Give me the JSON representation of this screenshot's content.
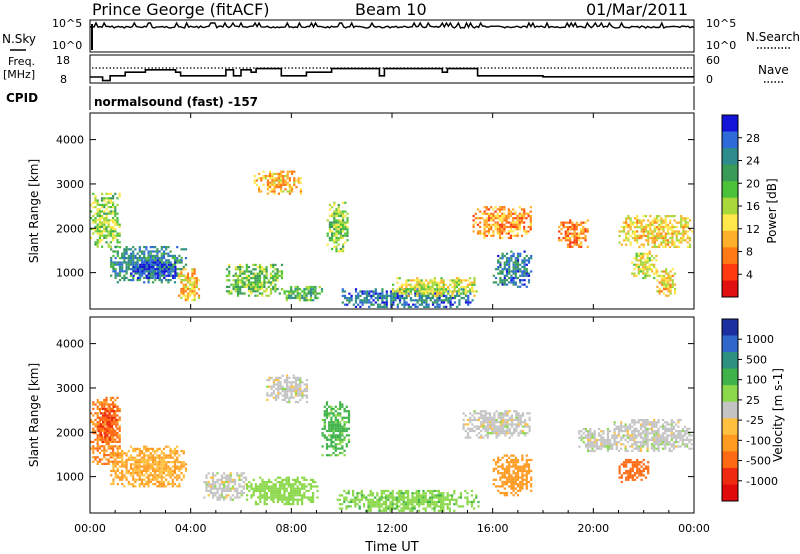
{
  "header": {
    "station": "Prince George (fitACF)",
    "beam": "Beam 10",
    "date": "01/Mar/2011"
  },
  "control_panel": {
    "nsky_label": "N.Sky",
    "nsky_ticks": [
      "10^5",
      "10^0"
    ],
    "nsearch_label": "N.Search",
    "nsearch_ticks": [
      "10^5",
      "10^0"
    ],
    "freq_label": "Freq.",
    "freq_unit": "[MHz]",
    "freq_ticks": [
      "18",
      "8"
    ],
    "nave_label": "Nave",
    "nave_ticks": [
      "60",
      "0"
    ],
    "cpid_label": "CPID",
    "cpid_value": "normalsound (fast) -157"
  },
  "chart_data": [
    {
      "type": "heatmap",
      "name": "power",
      "ylabel": "Slant Range [km]",
      "ylim": [
        180,
        4600
      ],
      "yticks": [
        1000,
        2000,
        3000,
        4000
      ],
      "xlim": [
        0,
        24
      ],
      "colorbar": {
        "label": "Power [dB]",
        "ticks": [
          "28",
          "24",
          "20",
          "16",
          "12",
          "8",
          "4"
        ],
        "colors": [
          "#1414d8",
          "#2e6bd9",
          "#2e8c8c",
          "#3a9a57",
          "#4cc23a",
          "#a8d83a",
          "#ffe84a",
          "#ffb02a",
          "#ff7a14",
          "#ff3a10",
          "#e01010"
        ]
      },
      "echo_regions": [
        {
          "t": [
            0.0,
            1.2
          ],
          "r": [
            1600,
            2800
          ],
          "v": 14
        },
        {
          "t": [
            0.8,
            3.8
          ],
          "r": [
            800,
            1600
          ],
          "v": 22
        },
        {
          "t": [
            1.6,
            3.4
          ],
          "r": [
            900,
            1300
          ],
          "v": 27
        },
        {
          "t": [
            3.5,
            4.3
          ],
          "r": [
            400,
            1100
          ],
          "v": 9
        },
        {
          "t": [
            6.5,
            8.4
          ],
          "r": [
            2800,
            3300
          ],
          "v": 8
        },
        {
          "t": [
            5.4,
            7.6
          ],
          "r": [
            500,
            1200
          ],
          "v": 16
        },
        {
          "t": [
            7.6,
            9.2
          ],
          "r": [
            400,
            700
          ],
          "v": 18
        },
        {
          "t": [
            9.4,
            10.2
          ],
          "r": [
            1500,
            2600
          ],
          "v": 15
        },
        {
          "t": [
            10.0,
            15.2
          ],
          "r": [
            250,
            650
          ],
          "v": 24
        },
        {
          "t": [
            12.0,
            15.4
          ],
          "r": [
            500,
            900
          ],
          "v": 12
        },
        {
          "t": [
            15.2,
            17.5
          ],
          "r": [
            1800,
            2500
          ],
          "v": 7
        },
        {
          "t": [
            16.0,
            17.5
          ],
          "r": [
            700,
            1500
          ],
          "v": 23
        },
        {
          "t": [
            18.6,
            19.8
          ],
          "r": [
            1600,
            2200
          ],
          "v": 5
        },
        {
          "t": [
            21.0,
            23.9
          ],
          "r": [
            1600,
            2300
          ],
          "v": 10
        },
        {
          "t": [
            21.5,
            22.5
          ],
          "r": [
            900,
            1500
          ],
          "v": 12
        },
        {
          "t": [
            22.5,
            23.2
          ],
          "r": [
            500,
            1100
          ],
          "v": 9
        }
      ]
    },
    {
      "type": "heatmap",
      "name": "velocity",
      "ylabel": "Slant Range [km]",
      "ylim": [
        180,
        4600
      ],
      "yticks": [
        1000,
        2000,
        3000,
        4000
      ],
      "xlim": [
        0,
        24
      ],
      "xlabel": "Time UT",
      "xticks": [
        "00:00",
        "04:00",
        "08:00",
        "12:00",
        "16:00",
        "20:00",
        "00:00"
      ],
      "colorbar": {
        "label": "Velocity [m s-1]",
        "ticks": [
          "1000",
          "500",
          "100",
          "25",
          "-25",
          "-100",
          "-500",
          "-1000"
        ],
        "colors": [
          "#1b2fa0",
          "#2f68c8",
          "#2e9080",
          "#3fb34a",
          "#8bd84a",
          "#c4c4c4",
          "#ffc040",
          "#ff9a20",
          "#ff6a14",
          "#ee2a10",
          "#e00a0a"
        ]
      },
      "echo_regions": [
        {
          "t": [
            0.0,
            1.2
          ],
          "r": [
            1300,
            2800
          ],
          "v": -500
        },
        {
          "t": [
            0.8,
            3.8
          ],
          "r": [
            800,
            1700
          ],
          "v": -100
        },
        {
          "t": [
            0.3,
            1.0
          ],
          "r": [
            1800,
            2600
          ],
          "v": -1000
        },
        {
          "t": [
            4.5,
            6.2
          ],
          "r": [
            500,
            1100
          ],
          "v": 0
        },
        {
          "t": [
            6.2,
            9.0
          ],
          "r": [
            400,
            1000
          ],
          "v": 60
        },
        {
          "t": [
            7.0,
            8.6
          ],
          "r": [
            2700,
            3300
          ],
          "v": 0
        },
        {
          "t": [
            9.2,
            10.3
          ],
          "r": [
            1500,
            2700
          ],
          "v": 120
        },
        {
          "t": [
            9.8,
            15.4
          ],
          "r": [
            250,
            700
          ],
          "v": 80
        },
        {
          "t": [
            14.8,
            17.5
          ],
          "r": [
            1900,
            2500
          ],
          "v": 0
        },
        {
          "t": [
            16.0,
            17.5
          ],
          "r": [
            600,
            1500
          ],
          "v": -150
        },
        {
          "t": [
            19.4,
            21.0
          ],
          "r": [
            1600,
            2100
          ],
          "v": 0
        },
        {
          "t": [
            20.8,
            23.9
          ],
          "r": [
            1600,
            2300
          ],
          "v": 0
        },
        {
          "t": [
            21.0,
            22.2
          ],
          "r": [
            900,
            1400
          ],
          "v": -600
        }
      ]
    }
  ],
  "time_series": {
    "freq_mhz": [
      [
        0.0,
        10.5
      ],
      [
        0.5,
        9.0
      ],
      [
        0.8,
        11.0
      ],
      [
        1.4,
        12.5
      ],
      [
        2.2,
        13.5
      ],
      [
        3.4,
        12.5
      ],
      [
        3.6,
        11.0
      ],
      [
        5.4,
        13.5
      ],
      [
        5.7,
        11.0
      ],
      [
        6.0,
        13.5
      ],
      [
        6.4,
        12.5
      ],
      [
        6.6,
        14.0
      ],
      [
        7.6,
        11.0
      ],
      [
        8.6,
        12.5
      ],
      [
        9.6,
        14.0
      ],
      [
        11.5,
        11.0
      ],
      [
        11.7,
        14.0
      ],
      [
        14.0,
        12.5
      ],
      [
        14.2,
        14.0
      ],
      [
        15.4,
        11.0
      ],
      [
        18.0,
        10.6
      ],
      [
        24.0,
        10.6
      ]
    ],
    "nave_dotted_level": 0.5
  }
}
